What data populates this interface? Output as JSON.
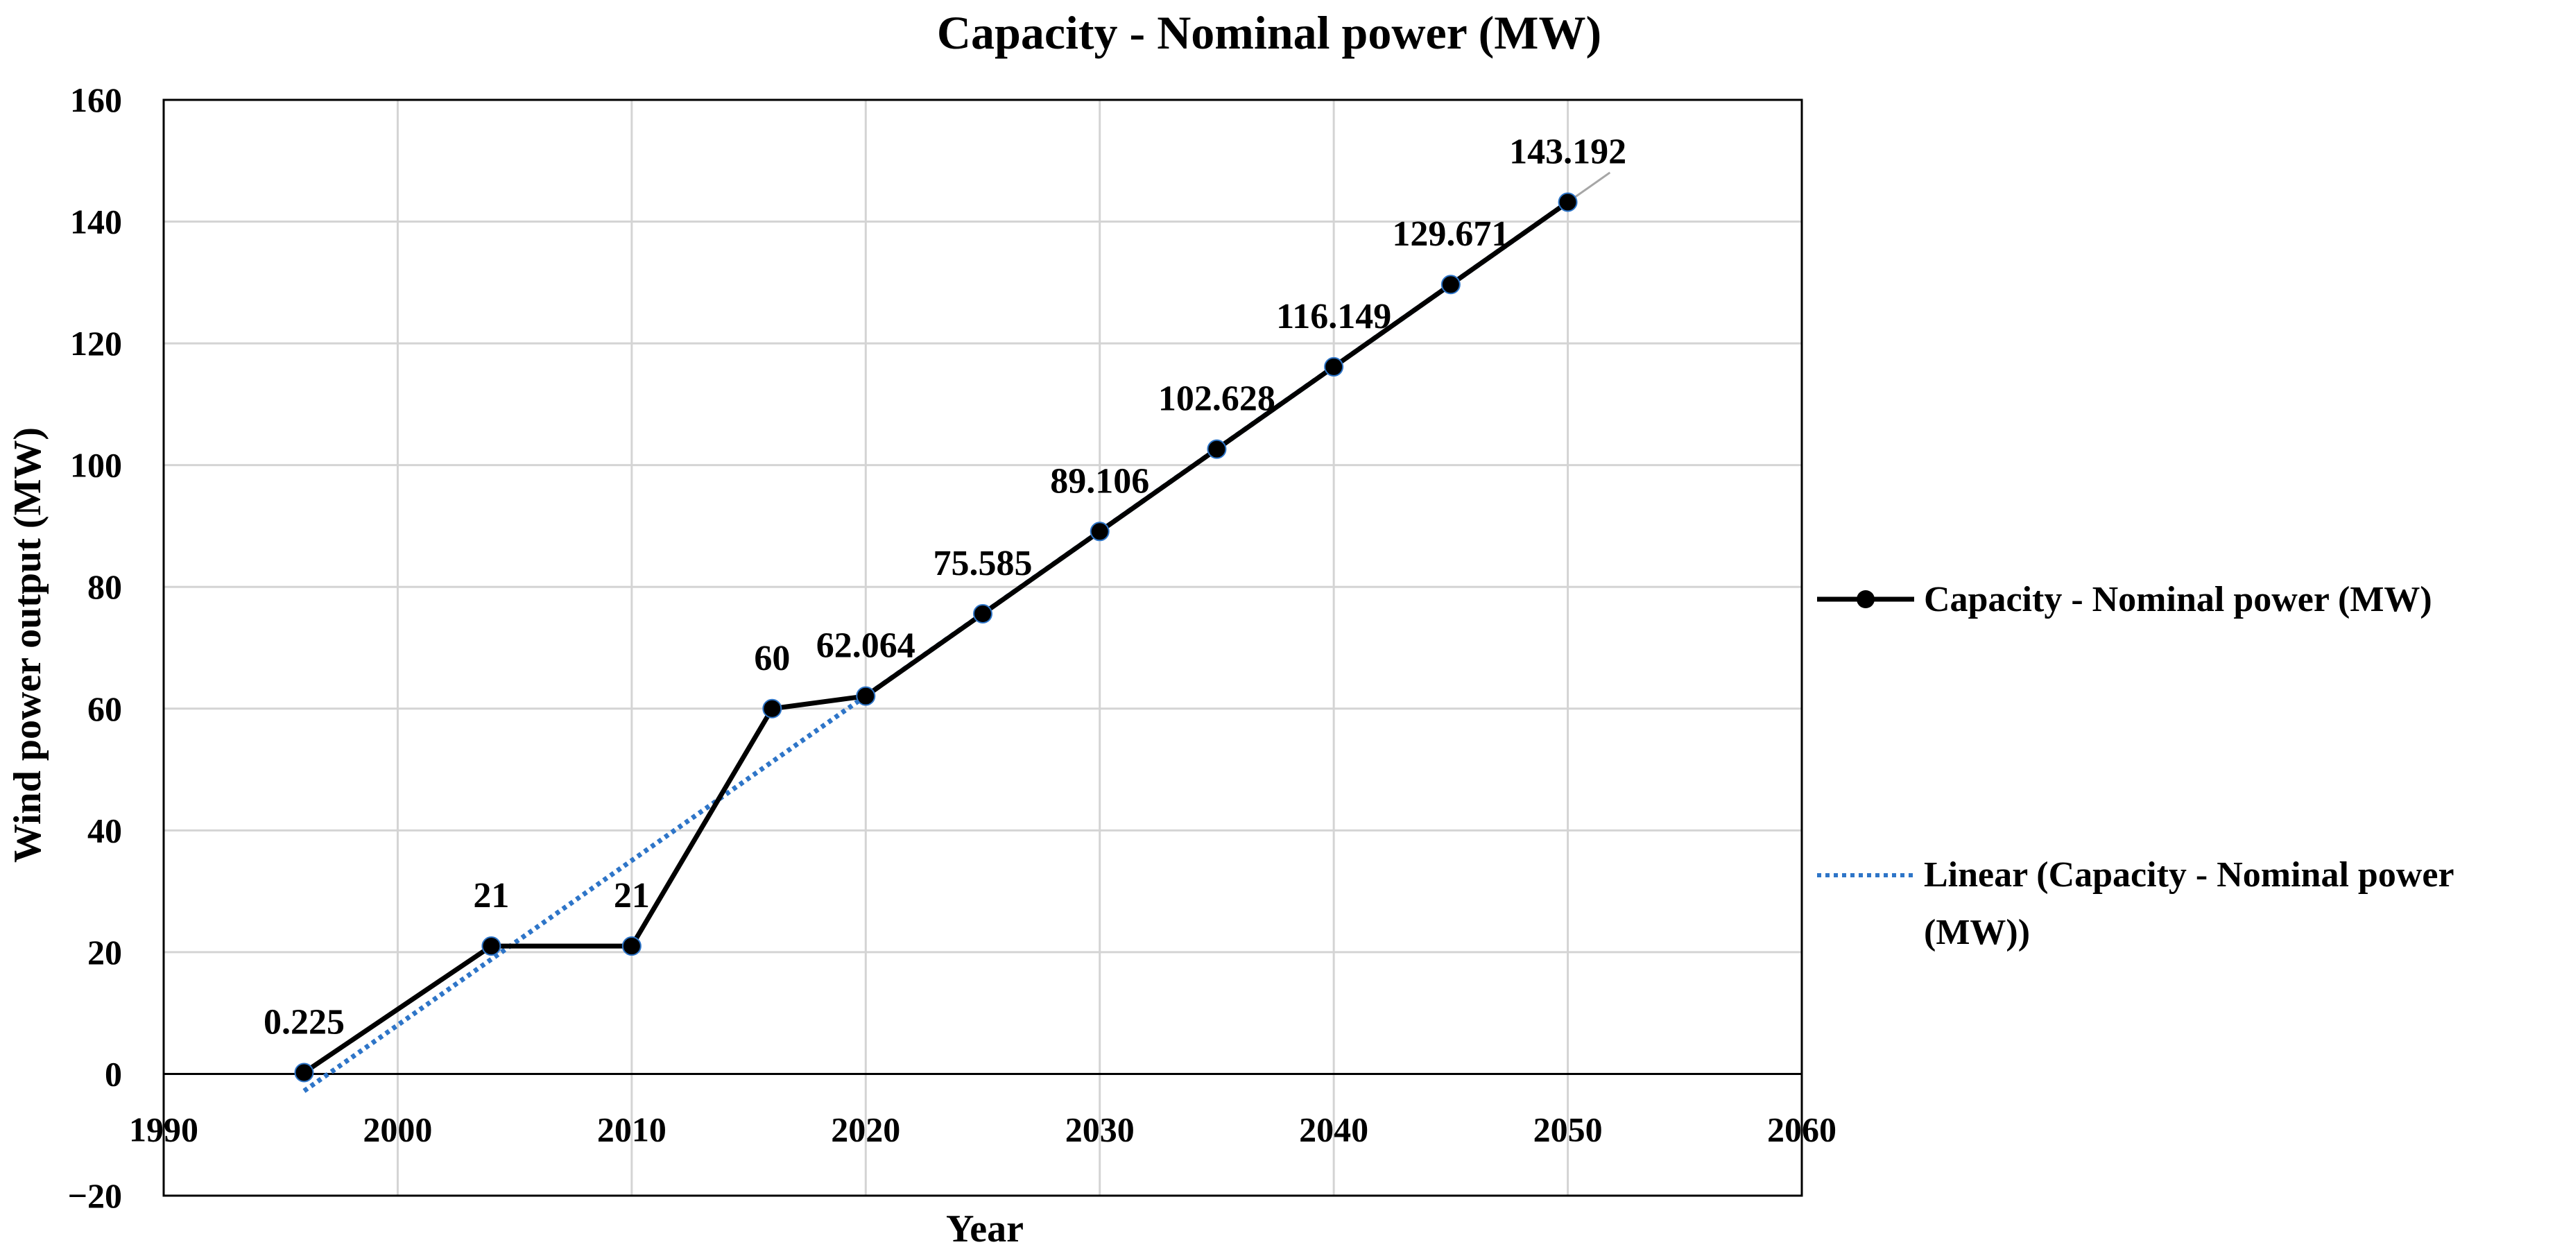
{
  "chart_data": {
    "type": "scatter",
    "title": "Capacity - Nominal power (MW)",
    "xlabel": "Year",
    "ylabel": "Wind power output (MW)",
    "xlim": [
      1990,
      2060
    ],
    "ylim": [
      -20,
      160
    ],
    "xticks": [
      1990,
      2000,
      2010,
      2020,
      2030,
      2040,
      2050,
      2060
    ],
    "yticks": [
      -20,
      0,
      20,
      40,
      60,
      80,
      100,
      120,
      140,
      160
    ],
    "ytick_labels": [
      "−20",
      "0",
      "20",
      "40",
      "60",
      "80",
      "100",
      "120",
      "140",
      "160"
    ],
    "grid": true,
    "series": [
      {
        "name": "Capacity - Nominal power (MW)",
        "style": "line-markers",
        "color": "#000000",
        "x": [
          1996,
          2004,
          2010,
          2016,
          2020,
          2025,
          2030,
          2035,
          2040,
          2045,
          2050
        ],
        "values": [
          0.225,
          21,
          21,
          60,
          62.064,
          75.585,
          89.106,
          102.628,
          116.149,
          129.671,
          143.192
        ],
        "labels": [
          "0.225",
          "21",
          "21",
          "60",
          "62.064",
          "75.585",
          "89.106",
          "102.628",
          "116.149",
          "129.671",
          "143.192"
        ]
      },
      {
        "name": "Linear (Capacity - Nominal power (MW))",
        "name_lines": [
          "Linear (Capacity - Nominal power",
          "(MW))"
        ],
        "style": "dotted-trendline",
        "color": "#2e75c8",
        "x": [
          1996,
          2050
        ],
        "values": [
          -2.8,
          143.192
        ]
      }
    ],
    "legend_position": "right"
  }
}
